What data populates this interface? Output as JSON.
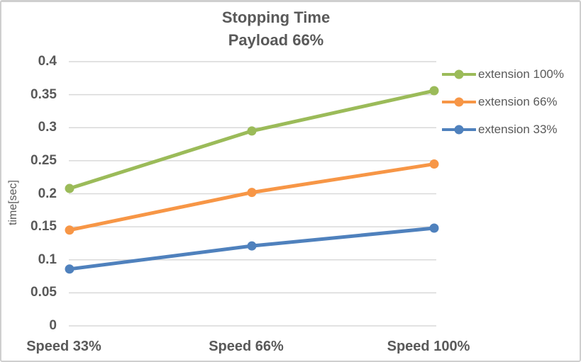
{
  "chart_data": {
    "type": "line",
    "title": "Stopping Time",
    "subtitle": "Payload 66%",
    "ylabel": "time[sec]",
    "xlabel": "",
    "categories": [
      "Speed 33%",
      "Speed 66%",
      "Speed 100%"
    ],
    "series": [
      {
        "name": "extension 100%",
        "color": "#9BBB59",
        "values": [
          0.208,
          0.295,
          0.356
        ]
      },
      {
        "name": "extension 66%",
        "color": "#F79646",
        "values": [
          0.145,
          0.202,
          0.245
        ]
      },
      {
        "name": "extension 33%",
        "color": "#4F81BD",
        "values": [
          0.086,
          0.121,
          0.148
        ]
      }
    ],
    "ylim": [
      0,
      0.4
    ],
    "y_ticks": [
      "0",
      "0.05",
      "0.1",
      "0.15",
      "0.2",
      "0.25",
      "0.3",
      "0.35",
      "0.4"
    ],
    "grid": true,
    "legend_position": "right"
  },
  "colors": {
    "text": "#595959",
    "gridline": "#D9D9D9",
    "background": "#FFFFFF",
    "border": "#CFCFCF"
  }
}
